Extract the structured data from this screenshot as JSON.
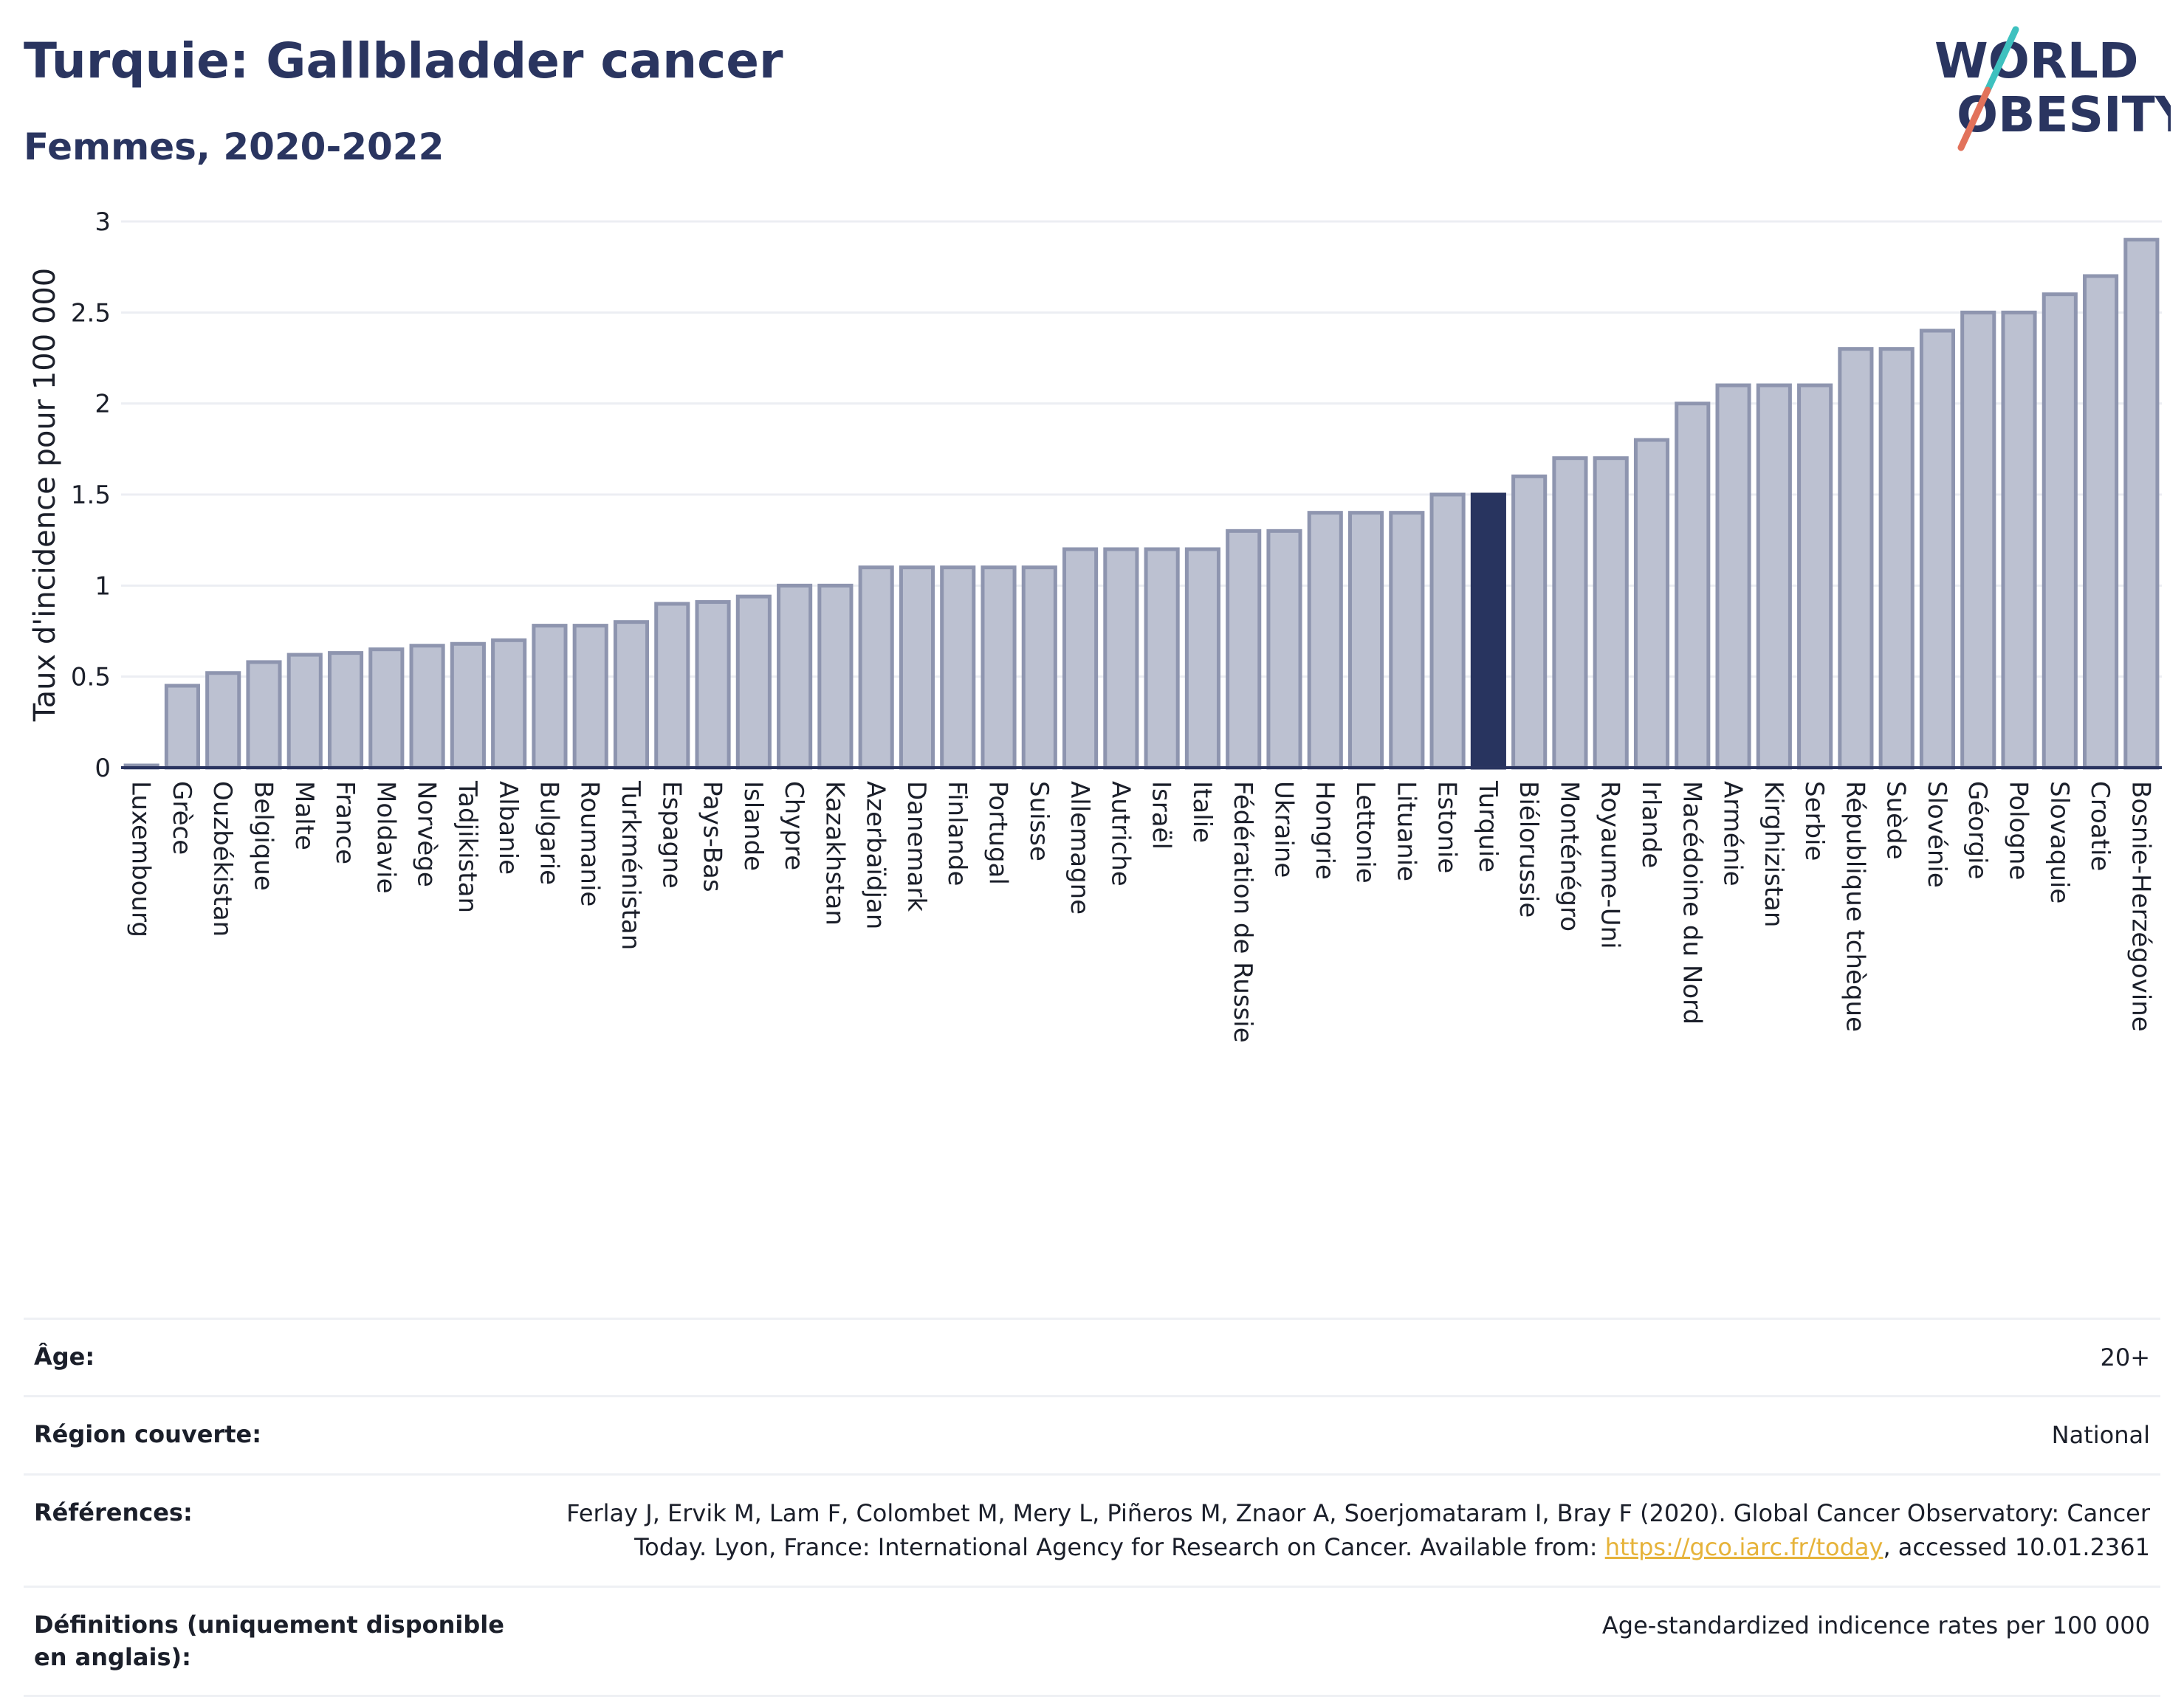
{
  "header": {
    "title": "Turquie: Gallbladder cancer",
    "subtitle": "Femmes, 2020-2022",
    "logo_line1": "WORLD",
    "logo_line2": "OBESITY"
  },
  "colors": {
    "bar": "#bcc1d1",
    "bar_edge": "#8e95af",
    "highlight": "#28345f",
    "grid": "#eceef3",
    "text": "#2a3560",
    "logo_teal": "#3ec1bf",
    "logo_coral": "#e2725b"
  },
  "chart_data": {
    "type": "bar",
    "ylabel": "Taux d'incidence pour 100 000",
    "xlabel": "",
    "ylim": [
      0,
      3
    ],
    "yticks": [
      0,
      0.5,
      1,
      1.5,
      2,
      2.5,
      3
    ],
    "ytick_labels": [
      "0",
      "0.5",
      "1",
      "1.5",
      "2",
      "2.5",
      "3"
    ],
    "grid": true,
    "highlight": "Turquie",
    "categories": [
      "Luxembourg",
      "Grèce",
      "Ouzbékistan",
      "Belgique",
      "Malte",
      "France",
      "Moldavie",
      "Norvège",
      "Tadjikistan",
      "Albanie",
      "Bulgarie",
      "Roumanie",
      "Turkménistan",
      "Espagne",
      "Pays-Bas",
      "Islande",
      "Chypre",
      "Kazakhstan",
      "Azerbaïdjan",
      "Danemark",
      "Finlande",
      "Portugal",
      "Suisse",
      "Allemagne",
      "Autriche",
      "Israël",
      "Italie",
      "Fédération de Russie",
      "Ukraine",
      "Hongrie",
      "Lettonie",
      "Lituanie",
      "Estonie",
      "Turquie",
      "Biélorussie",
      "Monténégro",
      "Royaume-Uni",
      "Irlande",
      "Macédoine du Nord",
      "Arménie",
      "Kirghizistan",
      "Serbie",
      "République tchèque",
      "Suède",
      "Slovénie",
      "Géorgie",
      "Pologne",
      "Slovaquie",
      "Croatie",
      "Bosnie-Herzégovine"
    ],
    "values": [
      0.01,
      0.45,
      0.52,
      0.58,
      0.62,
      0.63,
      0.65,
      0.67,
      0.68,
      0.7,
      0.78,
      0.78,
      0.8,
      0.9,
      0.91,
      0.94,
      1.0,
      1.0,
      1.1,
      1.1,
      1.1,
      1.1,
      1.1,
      1.2,
      1.2,
      1.2,
      1.2,
      1.3,
      1.3,
      1.4,
      1.4,
      1.4,
      1.5,
      1.5,
      1.6,
      1.7,
      1.7,
      1.8,
      2.0,
      2.1,
      2.1,
      2.1,
      2.3,
      2.3,
      2.4,
      2.5,
      2.5,
      2.6,
      2.7,
      2.9
    ]
  },
  "info": {
    "age_label": "Âge:",
    "age_value": "20+",
    "region_label": "Région couverte:",
    "region_value": "National",
    "refs_label": "Références:",
    "refs_text_1": "Ferlay J, Ervik M, Lam F, Colombet M, Mery L, Piñeros M, Znaor A, Soerjomataram I, Bray F (2020). Global Cancer Observatory: Cancer Today. Lyon, France: International Agency for Research on Cancer. Available from: ",
    "refs_link": "https://gco.iarc.fr/today",
    "refs_text_2": ", accessed 10.01.2361",
    "defs_label": "Définitions (uniquement disponible en anglais):",
    "defs_value": "Age-standardized indicence rates per 100 000"
  }
}
